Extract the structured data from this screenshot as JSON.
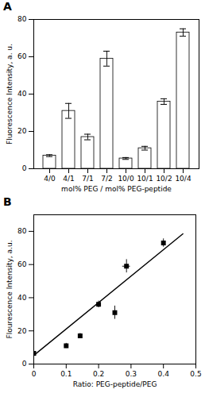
{
  "chart_data": [
    {
      "type": "bar",
      "title": "A",
      "categories": [
        "4/0",
        "4/1",
        "7/1",
        "7/2",
        "10/0",
        "10/1",
        "10/2",
        "10/4"
      ],
      "values": [
        7,
        31,
        17,
        59,
        5.5,
        11,
        36,
        73
      ],
      "errors": [
        0.5,
        4,
        1.5,
        4,
        0.5,
        1,
        1.5,
        2
      ],
      "color": "#ffffff",
      "xlabel": "mol% PEG / mol% PEG-peptide",
      "ylabel": "Fluorescence Intensity, a. u.",
      "ylim": [
        0,
        80
      ],
      "yticks": [
        0,
        20,
        40,
        60,
        80
      ]
    },
    {
      "type": "scatter",
      "title": "B",
      "x": [
        0.0,
        0.1,
        0.143,
        0.2,
        0.25,
        0.286,
        0.4
      ],
      "values": [
        6.5,
        11,
        17,
        36,
        31,
        59,
        73
      ],
      "xerr": [
        0.005,
        0.005,
        0.005,
        0.005,
        0.005,
        0.012,
        0.005
      ],
      "yerr": [
        0.8,
        1.5,
        1.5,
        2.0,
        4.0,
        4.0,
        2.5
      ],
      "line_x": [
        0.0,
        0.46
      ],
      "line_y": [
        5.2,
        78.5
      ],
      "marker": "square",
      "xlabel": "Ratio: PEG-peptide/PEG",
      "ylabel": "Flourescence Intensity, a.u.",
      "xlim": [
        0,
        0.5
      ],
      "xticks": [
        0.0,
        0.1,
        0.2,
        0.3,
        0.4,
        0.5
      ],
      "ylim": [
        0,
        90
      ],
      "yticks": [
        0,
        20,
        40,
        60,
        80
      ]
    }
  ]
}
